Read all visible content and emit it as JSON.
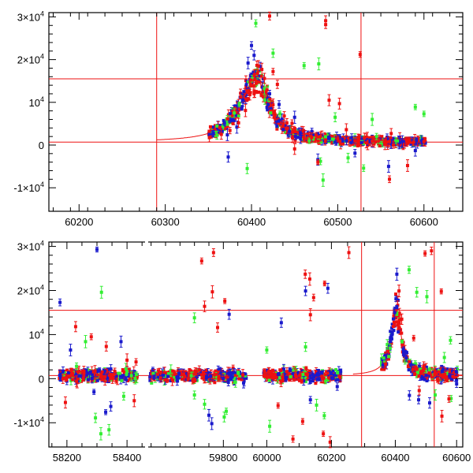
{
  "colors": {
    "blue": "#1a1acc",
    "green": "#33ee33",
    "red": "#ee1111",
    "axis": "#000000"
  },
  "chart_data": [
    {
      "type": "scatter",
      "title": "",
      "xlabel": "",
      "ylabel": "",
      "xlim": [
        60165,
        60645
      ],
      "ylim": [
        -15500,
        31000
      ],
      "grid": false,
      "x_ticks": [
        60200,
        60300,
        60400,
        60500,
        60600
      ],
      "x_tick_labels": [
        "60200",
        "60300",
        "60400",
        "60500",
        "60600"
      ],
      "y_ticks": [
        -10000,
        0,
        10000,
        20000,
        30000
      ],
      "y_tick_labels": [
        {
          "base": "-1×10",
          "exp": "4"
        },
        {
          "base": "0",
          "exp": ""
        },
        {
          "base": "10",
          "exp": "4"
        },
        {
          "base": "2×10",
          "exp": "4"
        },
        {
          "base": "3×10",
          "exp": "4"
        }
      ],
      "reference_lines": {
        "horizontal": [
          700,
          15500
        ],
        "vertical": [
          60290,
          60527
        ]
      },
      "model_curve": {
        "t0": 60405,
        "baseline": 700,
        "peak": 15500
      },
      "series": [
        {
          "color": "blue",
          "points": [
            [
              60355,
              2600
            ],
            [
              60372,
              2400
            ],
            [
              60383,
              4200
            ],
            [
              60390,
              10500
            ],
            [
              60396,
              19200
            ],
            [
              60400,
              23300
            ],
            [
              60403,
              21000
            ],
            [
              60410,
              18400
            ],
            [
              60421,
              12000
            ],
            [
              60432,
              9500
            ],
            [
              60450,
              6500
            ],
            [
              60470,
              3200
            ],
            [
              60490,
              1800
            ],
            [
              60510,
              1000
            ],
            [
              60540,
              900
            ],
            [
              60575,
              800
            ],
            [
              60598,
              600
            ],
            [
              60373,
              -2800
            ],
            [
              60477,
              -3400
            ],
            [
              60520,
              -1900
            ],
            [
              60559,
              -5000
            ],
            [
              60590,
              -1300
            ],
            [
              60520,
              1200
            ],
            [
              60458,
              2500
            ],
            [
              60444,
              3200
            ]
          ]
        },
        {
          "color": "green",
          "points": [
            [
              60405,
              28500
            ],
            [
              60425,
              21500
            ],
            [
              60407,
              17000
            ],
            [
              60380,
              7500
            ],
            [
              60360,
              2300
            ],
            [
              60395,
              -5500
            ],
            [
              60433,
              7300
            ],
            [
              60478,
              19000
            ],
            [
              60461,
              18600
            ],
            [
              60497,
              6500
            ],
            [
              60540,
              6000
            ],
            [
              60483,
              -8200
            ],
            [
              60512,
              -3000
            ],
            [
              60530,
              -5400
            ],
            [
              60590,
              8900
            ],
            [
              60600,
              7300
            ],
            [
              60545,
              2000
            ],
            [
              60467,
              1000
            ],
            [
              60415,
              13200
            ],
            [
              60480,
              -3800
            ]
          ]
        },
        {
          "color": "red",
          "points": [
            [
              60407,
              16800
            ],
            [
              60404,
              15300
            ],
            [
              60408,
              18500
            ],
            [
              60412,
              17700
            ],
            [
              60415,
              15600
            ],
            [
              60418,
              12900
            ],
            [
              60425,
              9400
            ],
            [
              60438,
              6800
            ],
            [
              60447,
              5100
            ],
            [
              60460,
              3400
            ],
            [
              60480,
              2000
            ],
            [
              60500,
              1500
            ],
            [
              60520,
              1000
            ],
            [
              60540,
              900
            ],
            [
              60560,
              800
            ],
            [
              60580,
              800
            ],
            [
              60600,
              800
            ],
            [
              60365,
              2500
            ],
            [
              60375,
              3400
            ],
            [
              60385,
              5200
            ],
            [
              60393,
              8100
            ],
            [
              60398,
              11800
            ],
            [
              60402,
              13900
            ],
            [
              60421,
              30200
            ],
            [
              60486,
              29100
            ],
            [
              60486,
              28200
            ],
            [
              60526,
              21200
            ],
            [
              60477,
              -4000
            ],
            [
              60560,
              -8000
            ],
            [
              60581,
              -4800
            ],
            [
              60425,
              17200
            ],
            [
              60430,
              14200
            ],
            [
              60502,
              9700
            ],
            [
              60490,
              10500
            ],
            [
              60441,
              5200
            ],
            [
              60470,
              1800
            ],
            [
              60510,
              3600
            ],
            [
              60562,
              2700
            ],
            [
              60588,
              700
            ],
            [
              60450,
              -900
            ]
          ]
        }
      ]
    },
    {
      "type": "scatter",
      "title": "",
      "xlabel": "",
      "ylabel": "",
      "xlim": [
        0,
        100
      ],
      "ylim": [
        -15500,
        31000
      ],
      "grid": false,
      "segments": [
        {
          "x_range": [
            58140,
            58460
          ],
          "ticks": [
            58200,
            58400
          ],
          "tick_labels": [
            "58200",
            "58400"
          ]
        },
        {
          "x_range": [
            59540,
            59900
          ],
          "ticks": [
            59800
          ],
          "tick_labels": [
            "59800"
          ]
        },
        {
          "x_range": [
            59960,
            60260
          ],
          "ticks": [
            60000,
            60200
          ],
          "tick_labels": [
            "60000",
            "60200"
          ]
        },
        {
          "x_range": [
            60260,
            60620
          ],
          "ticks": [
            60400,
            60600
          ],
          "tick_labels": [
            "60400",
            "60600"
          ]
        }
      ],
      "y_ticks": [
        -10000,
        0,
        10000,
        20000,
        30000
      ],
      "y_tick_labels": [
        {
          "base": "-1×10",
          "exp": "4"
        },
        {
          "base": "0",
          "exp": ""
        },
        {
          "base": "10",
          "exp": "4"
        },
        {
          "base": "2×10",
          "exp": "4"
        },
        {
          "base": "3×10",
          "exp": "4"
        }
      ],
      "reference_lines": {
        "horizontal": [
          700,
          15500
        ],
        "vertical": [
          60290,
          60527
        ]
      },
      "series": [
        {
          "color": "blue",
          "points": [
            [
              58177,
              17300
            ],
            [
              58300,
              29300
            ],
            [
              58212,
              6500
            ],
            [
              58290,
              -3000
            ],
            [
              58329,
              -7600
            ],
            [
              58346,
              -6300
            ],
            [
              58380,
              8400
            ],
            [
              59820,
              14600
            ],
            [
              59760,
              -10200
            ],
            [
              59750,
              -8300
            ],
            [
              59870,
              -1000
            ],
            [
              60045,
              12700
            ],
            [
              60120,
              19900
            ],
            [
              60189,
              20500
            ],
            [
              60135,
              -4800
            ],
            [
              60218,
              -1800
            ],
            [
              60405,
              23700
            ],
            [
              60398,
              15000
            ],
            [
              60446,
              -3800
            ],
            [
              60476,
              -4800
            ],
            [
              60512,
              -5500
            ],
            [
              60556,
              2100
            ],
            [
              60600,
              -1200
            ]
          ]
        },
        {
          "color": "green",
          "points": [
            [
              58315,
              19600
            ],
            [
              58262,
              8400
            ],
            [
              58232,
              2800
            ],
            [
              58295,
              -8900
            ],
            [
              58313,
              -12500
            ],
            [
              58340,
              -11600
            ],
            [
              58389,
              -4000
            ],
            [
              59700,
              13800
            ],
            [
              59735,
              -5800
            ],
            [
              59803,
              -8700
            ],
            [
              59810,
              -7400
            ],
            [
              59700,
              -3700
            ],
            [
              60000,
              6500
            ],
            [
              60009,
              -10800
            ],
            [
              60178,
              -8400
            ],
            [
              60154,
              -6000
            ],
            [
              60120,
              7200
            ],
            [
              60470,
              19600
            ],
            [
              60445,
              24700
            ],
            [
              60503,
              18600
            ],
            [
              60560,
              4800
            ],
            [
              60580,
              8700
            ],
            [
              60582,
              -4500
            ],
            [
              60530,
              -3700
            ]
          ]
        },
        {
          "color": "red",
          "points": [
            [
              59766,
              28600
            ],
            [
              59725,
              26700
            ],
            [
              59762,
              19700
            ],
            [
              59735,
              16400
            ],
            [
              59805,
              17600
            ],
            [
              59780,
              11600
            ],
            [
              60119,
              23700
            ],
            [
              60133,
              22600
            ],
            [
              60179,
              21600
            ],
            [
              60145,
              18400
            ],
            [
              60135,
              14500
            ],
            [
              60175,
              -12500
            ],
            [
              60196,
              -14400
            ],
            [
              60081,
              -13700
            ],
            [
              60111,
              -9700
            ],
            [
              60035,
              -6100
            ],
            [
              58229,
              11800
            ],
            [
              58281,
              9500
            ],
            [
              58331,
              7300
            ],
            [
              58195,
              -5400
            ],
            [
              58424,
              -5000
            ],
            [
              58400,
              4200
            ],
            [
              58430,
              3800
            ],
            [
              60254,
              28600
            ],
            [
              60412,
              19900
            ],
            [
              60421,
              13500
            ],
            [
              60460,
              9200
            ],
            [
              60478,
              -2700
            ],
            [
              60497,
              28400
            ],
            [
              60518,
              29000
            ],
            [
              60552,
              -8500
            ],
            [
              60575,
              -4600
            ],
            [
              60550,
              19800
            ]
          ]
        }
      ]
    }
  ]
}
